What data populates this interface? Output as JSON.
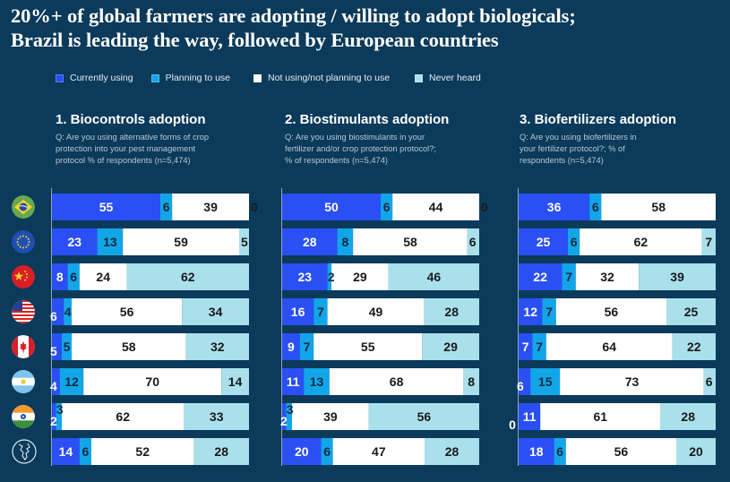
{
  "title_lines": [
    "20%+ of global farmers are adopting / willing to adopt biologicals;",
    "Brazil is leading the way, followed by European countries"
  ],
  "legend": [
    {
      "label": "Currently using",
      "color": "#2a4ff5"
    },
    {
      "label": "Planning to use",
      "color": "#12a6e8"
    },
    {
      "label": "Not using/not planning to use",
      "color": "#ffffff"
    },
    {
      "label": "Never heard",
      "color": "#a9e0ec"
    }
  ],
  "countries": [
    {
      "name": "Brazil",
      "icon": "brazil-flag-icon"
    },
    {
      "name": "Europe",
      "icon": "eu-flag-icon"
    },
    {
      "name": "China",
      "icon": "china-flag-icon"
    },
    {
      "name": "United States",
      "icon": "us-flag-icon"
    },
    {
      "name": "Canada",
      "icon": "canada-flag-icon"
    },
    {
      "name": "Argentina",
      "icon": "argentina-flag-icon"
    },
    {
      "name": "India",
      "icon": "india-flag-icon"
    },
    {
      "name": "Global",
      "icon": "globe-icon"
    }
  ],
  "panels": [
    {
      "title": "1. Biocontrols  adoption",
      "question": [
        "Q: Are you using alternative forms of crop",
        "protection into your pest management",
        "protocol % of respondents (n=5,474)"
      ]
    },
    {
      "title": "2. Biostimulants adoption",
      "question": [
        "Q: Are you using biostimulants in your",
        "fertilizer and/or crop protection protocol?;",
        "% of respondents (n=5,474)"
      ]
    },
    {
      "title": "3. Biofertilizers adoption",
      "question": [
        "Q: Are you using biofertilizers in",
        "your fertilizer protocol?; % of",
        "respondents  (n=5,474)"
      ]
    }
  ],
  "chart_data": [
    {
      "type": "bar",
      "orientation": "horizontal-stacked",
      "title": "1. Biocontrols  adoption",
      "categories": [
        "Brazil",
        "Europe",
        "China",
        "United States",
        "Canada",
        "Argentina",
        "India",
        "Global"
      ],
      "xlim": [
        0,
        100
      ],
      "series": [
        {
          "name": "Currently using",
          "values": [
            55,
            23,
            8,
            6,
            5,
            4,
            2,
            14
          ]
        },
        {
          "name": "Planning to use",
          "values": [
            6,
            13,
            6,
            4,
            5,
            12,
            3,
            6
          ]
        },
        {
          "name": "Not using/not planning to use",
          "values": [
            39,
            59,
            24,
            56,
            58,
            70,
            62,
            52
          ]
        },
        {
          "name": "Never heard",
          "values": [
            0,
            5,
            62,
            34,
            32,
            14,
            33,
            28
          ]
        }
      ]
    },
    {
      "type": "bar",
      "orientation": "horizontal-stacked",
      "title": "2. Biostimulants adoption",
      "categories": [
        "Brazil",
        "Europe",
        "China",
        "United States",
        "Canada",
        "Argentina",
        "India",
        "Global"
      ],
      "xlim": [
        0,
        100
      ],
      "series": [
        {
          "name": "Currently using",
          "values": [
            50,
            28,
            23,
            16,
            9,
            11,
            2,
            20
          ]
        },
        {
          "name": "Planning to use",
          "values": [
            6,
            8,
            2,
            7,
            7,
            13,
            3,
            6
          ]
        },
        {
          "name": "Not using/not planning to use",
          "values": [
            44,
            58,
            29,
            49,
            55,
            68,
            39,
            47
          ]
        },
        {
          "name": "Never heard",
          "values": [
            0,
            6,
            46,
            28,
            29,
            8,
            56,
            28
          ]
        }
      ]
    },
    {
      "type": "bar",
      "orientation": "horizontal-stacked",
      "title": "3. Biofertilizers adoption",
      "categories": [
        "Brazil",
        "Europe",
        "China",
        "United States",
        "Canada",
        "Argentina",
        "India",
        "Global"
      ],
      "xlim": [
        0,
        100
      ],
      "series": [
        {
          "name": "Currently using",
          "values": [
            36,
            25,
            22,
            12,
            7,
            6,
            11,
            18
          ]
        },
        {
          "name": "Planning to use",
          "values": [
            6,
            6,
            7,
            7,
            7,
            15,
            0,
            6
          ]
        },
        {
          "name": "Not using/not planning to use",
          "values": [
            58,
            62,
            32,
            56,
            64,
            73,
            61,
            56
          ]
        },
        {
          "name": "Never heard",
          "values": [
            null,
            7,
            39,
            25,
            22,
            6,
            28,
            20
          ]
        }
      ]
    }
  ]
}
